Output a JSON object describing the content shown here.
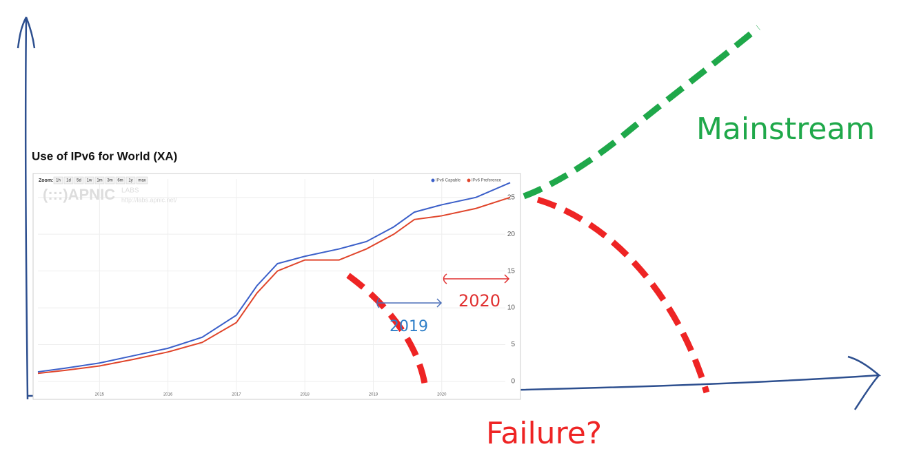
{
  "chart_data": {
    "type": "line",
    "title": "Use of IPv6 for World (XA)",
    "zoom_label": "Zoom:",
    "zoom_options": [
      "1h",
      "1d",
      "5d",
      "1w",
      "1m",
      "3m",
      "6m",
      "1y",
      "max"
    ],
    "watermark": [
      "(:::)APNIC",
      "LABS",
      "http://labs.apnic.net/"
    ],
    "x": [
      2014.1,
      2014.5,
      2015,
      2015.5,
      2016,
      2016.5,
      2017,
      2017.3,
      2017.6,
      2018,
      2018.5,
      2018.9,
      2019.3,
      2019.6,
      2020,
      2020.5,
      2021
    ],
    "series": [
      {
        "name": "IPv6 Capable",
        "color": "#3b5fc9",
        "values": [
          1.3,
          1.8,
          2.5,
          3.5,
          4.5,
          6,
          9,
          13,
          16,
          17,
          18,
          19,
          21,
          23,
          24,
          25,
          27
        ]
      },
      {
        "name": "IPv6 Preference",
        "color": "#e0452b",
        "values": [
          1.1,
          1.5,
          2.1,
          3,
          4,
          5.3,
          8,
          12,
          15,
          16.5,
          16.5,
          18,
          20,
          22,
          22.5,
          23.5,
          25
        ]
      }
    ],
    "xlim": [
      2014.1,
      2021.05
    ],
    "xticks": [
      2015,
      2016,
      2017,
      2018,
      2019,
      2020
    ],
    "ylim": [
      -1.5,
      27.5
    ],
    "yticks": [
      0,
      5,
      10,
      15,
      20,
      25
    ],
    "grid": true,
    "annotations": [
      "Mainstream",
      "Failure?",
      "2019",
      "2020"
    ]
  }
}
